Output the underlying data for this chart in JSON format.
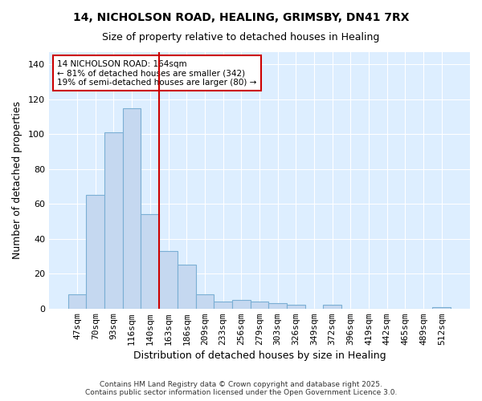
{
  "title_line1": "14, NICHOLSON ROAD, HEALING, GRIMSBY, DN41 7RX",
  "title_line2": "Size of property relative to detached houses in Healing",
  "xlabel": "Distribution of detached houses by size in Healing",
  "ylabel": "Number of detached properties",
  "categories": [
    "47sqm",
    "70sqm",
    "93sqm",
    "116sqm",
    "140sqm",
    "163sqm",
    "186sqm",
    "209sqm",
    "233sqm",
    "256sqm",
    "279sqm",
    "303sqm",
    "326sqm",
    "349sqm",
    "372sqm",
    "396sqm",
    "419sqm",
    "442sqm",
    "465sqm",
    "489sqm",
    "512sqm"
  ],
  "bar_values": [
    8,
    65,
    101,
    115,
    54,
    33,
    25,
    8,
    4,
    5,
    4,
    3,
    2,
    0,
    2,
    0,
    0,
    0,
    0,
    0,
    1
  ],
  "bar_color": "#c5d8f0",
  "bar_edge_color": "#7bafd4",
  "figure_bg_color": "#ffffff",
  "plot_bg_color": "#ddeeff",
  "grid_color": "#ffffff",
  "vline_color": "#cc0000",
  "vline_x_index": 5,
  "annotation_text": "14 NICHOLSON ROAD: 164sqm\n← 81% of detached houses are smaller (342)\n19% of semi-detached houses are larger (80) →",
  "annotation_box_facecolor": "#ffffff",
  "annotation_box_edgecolor": "#cc0000",
  "ylim": [
    0,
    147
  ],
  "yticks": [
    0,
    20,
    40,
    60,
    80,
    100,
    120,
    140
  ],
  "footnote1": "Contains HM Land Registry data © Crown copyright and database right 2025.",
  "footnote2": "Contains public sector information licensed under the Open Government Licence 3.0."
}
